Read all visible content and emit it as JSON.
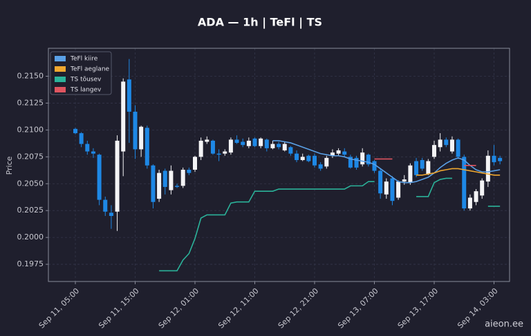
{
  "chart_data": {
    "type": "candlestick",
    "title": "ADA — 1h  |  TeFl  |  TS",
    "y_label": "Price",
    "watermark": "aieon.ee",
    "categories": [
      "Sep 11, 05:00",
      null,
      null,
      null,
      null,
      null,
      null,
      null,
      null,
      null,
      "Sep 11, 15:00",
      null,
      null,
      null,
      null,
      null,
      null,
      null,
      null,
      null,
      "Sep 12, 01:00",
      null,
      null,
      null,
      null,
      null,
      null,
      null,
      null,
      null,
      "Sep 12, 11:00",
      null,
      null,
      null,
      null,
      null,
      null,
      null,
      null,
      null,
      "Sep 12, 21:00",
      null,
      null,
      null,
      null,
      null,
      null,
      null,
      null,
      null,
      "Sep 13, 07:00",
      null,
      null,
      null,
      null,
      null,
      null,
      null,
      null,
      null,
      "Sep 13, 17:00",
      null,
      null,
      null,
      null,
      null,
      null,
      null,
      null,
      null,
      "Sep 14, 03:00",
      null
    ],
    "open": [
      0.2101,
      0.2097,
      0.2087,
      0.208,
      0.2077,
      0.2035,
      0.2023,
      0.2024,
      0.208,
      0.2147,
      0.2117,
      0.2082,
      0.2102,
      0.2067,
      0.2036,
      0.2062,
      0.2044,
      0.2048,
      0.2048,
      0.2063,
      0.2063,
      0.2075,
      0.2089,
      0.209,
      0.2078,
      0.2078,
      0.2079,
      0.2091,
      0.2089,
      0.2085,
      0.2092,
      0.2085,
      0.2091,
      0.2083,
      0.2087,
      0.2081,
      0.2084,
      0.2078,
      0.2072,
      0.2076,
      0.2076,
      0.2068,
      0.2066,
      0.2076,
      0.2078,
      0.208,
      0.2075,
      0.2074,
      0.2068,
      0.2077,
      0.2071,
      0.2062,
      0.204,
      0.2055,
      0.2037,
      0.2052,
      0.2051,
      0.2071,
      0.2072,
      0.2059,
      0.2075,
      0.2084,
      0.2091,
      0.208,
      0.2091,
      0.2075,
      0.2027,
      0.2033,
      0.2039,
      0.2052,
      0.2076,
      0.2074
    ],
    "high": [
      0.2102,
      0.2098,
      0.209,
      0.2083,
      0.2078,
      0.2038,
      0.203,
      0.2095,
      0.2148,
      0.2166,
      0.2123,
      0.2104,
      0.2104,
      0.2068,
      0.2063,
      0.2064,
      0.2067,
      0.205,
      0.2065,
      0.2065,
      0.2076,
      0.2093,
      0.2094,
      0.2091,
      0.2082,
      0.2082,
      0.2093,
      0.2095,
      0.2092,
      0.2093,
      0.2093,
      0.2093,
      0.2092,
      0.209,
      0.2089,
      0.2089,
      0.2085,
      0.2081,
      0.2078,
      0.2077,
      0.2078,
      0.207,
      0.2076,
      0.2082,
      0.2083,
      0.2083,
      0.2077,
      0.2076,
      0.2083,
      0.2078,
      0.2072,
      0.2064,
      0.2055,
      0.2057,
      0.2053,
      0.2058,
      0.2069,
      0.2074,
      0.2074,
      0.2073,
      0.209,
      0.2097,
      0.2093,
      0.2094,
      0.2092,
      0.2077,
      0.204,
      0.2045,
      0.2055,
      0.2081,
      0.2086,
      0.2076
    ],
    "low": [
      0.2096,
      0.2084,
      0.2077,
      0.2074,
      0.203,
      0.202,
      0.2008,
      0.2006,
      0.2057,
      0.2088,
      0.2073,
      0.2075,
      0.2064,
      0.2027,
      0.2033,
      0.204,
      0.204,
      0.2046,
      0.2046,
      0.2058,
      0.2061,
      0.2072,
      0.2087,
      0.2077,
      0.2071,
      0.2076,
      0.2077,
      0.2087,
      0.2084,
      0.2083,
      0.2084,
      0.2083,
      0.208,
      0.2082,
      0.2082,
      0.208,
      0.2076,
      0.207,
      0.2071,
      0.207,
      0.2065,
      0.2062,
      0.2064,
      0.2074,
      0.2076,
      0.2075,
      0.2064,
      0.2063,
      0.2066,
      0.2066,
      0.206,
      0.2036,
      0.2036,
      0.203,
      0.2035,
      0.2049,
      0.2049,
      0.2056,
      0.2062,
      0.2058,
      0.2073,
      0.208,
      0.2084,
      0.2078,
      0.2073,
      0.2025,
      0.2025,
      0.203,
      0.2036,
      0.2047,
      0.2067,
      0.2068
    ],
    "close": [
      0.2097,
      0.2087,
      0.208,
      0.2078,
      0.2035,
      0.2024,
      0.202,
      0.209,
      0.2145,
      0.2117,
      0.2082,
      0.2103,
      0.2067,
      0.2033,
      0.206,
      0.2047,
      0.2062,
      0.2047,
      0.2063,
      0.206,
      0.2075,
      0.209,
      0.2091,
      0.2078,
      0.2077,
      0.208,
      0.2091,
      0.2088,
      0.2086,
      0.209,
      0.2085,
      0.2092,
      0.2083,
      0.2087,
      0.2084,
      0.2087,
      0.2078,
      0.2072,
      0.2075,
      0.2071,
      0.2067,
      0.2064,
      0.2074,
      0.2079,
      0.2081,
      0.2077,
      0.2065,
      0.2065,
      0.2079,
      0.2068,
      0.2062,
      0.2041,
      0.2052,
      0.2034,
      0.2052,
      0.2054,
      0.2067,
      0.2058,
      0.2064,
      0.2071,
      0.2086,
      0.2091,
      0.2086,
      0.2091,
      0.2075,
      0.2027,
      0.2037,
      0.2043,
      0.2053,
      0.2076,
      0.207,
      0.2071
    ],
    "up_color": "#f4f4f6",
    "down_color": "#1e88e5",
    "series": [
      {
        "name": "TeFl kiire",
        "color": "#5aa0e6",
        "values": [
          null,
          null,
          null,
          null,
          null,
          null,
          null,
          null,
          null,
          null,
          null,
          null,
          null,
          null,
          null,
          null,
          null,
          null,
          null,
          null,
          null,
          null,
          null,
          null,
          null,
          null,
          null,
          null,
          null,
          null,
          null,
          null,
          null,
          0.209,
          0.209,
          0.2089,
          0.2088,
          0.2086,
          0.2084,
          0.2082,
          0.208,
          0.2078,
          0.2077,
          0.2076,
          0.2076,
          0.2075,
          0.2073,
          0.2072,
          0.2071,
          0.207,
          0.2068,
          0.2064,
          0.206,
          0.2056,
          0.2052,
          0.2051,
          0.2051,
          0.2052,
          0.2054,
          0.2056,
          0.206,
          0.2065,
          0.2069,
          0.2072,
          0.2074,
          0.2072,
          0.2067,
          0.2063,
          0.2061,
          0.2061,
          0.2062,
          0.2063
        ]
      },
      {
        "name": "TeFl aeglane",
        "color": "#f0a830",
        "values": [
          null,
          null,
          null,
          null,
          null,
          null,
          null,
          null,
          null,
          null,
          null,
          null,
          null,
          null,
          null,
          null,
          null,
          null,
          null,
          null,
          null,
          null,
          null,
          null,
          null,
          null,
          null,
          null,
          null,
          null,
          null,
          null,
          null,
          null,
          null,
          null,
          null,
          null,
          null,
          null,
          null,
          null,
          null,
          null,
          null,
          null,
          null,
          null,
          null,
          null,
          null,
          null,
          null,
          null,
          null,
          null,
          null,
          0.2058,
          0.2058,
          0.2059,
          0.206,
          0.2062,
          0.2063,
          0.2064,
          0.2064,
          0.2063,
          0.2062,
          0.2061,
          0.206,
          0.2059,
          0.2058,
          0.2058
        ]
      },
      {
        "name": "TS tõusev",
        "color": "#2bb39a",
        "values": [
          null,
          null,
          null,
          null,
          null,
          null,
          null,
          null,
          null,
          null,
          null,
          null,
          null,
          null,
          0.1969,
          0.1969,
          0.1969,
          0.1969,
          0.1979,
          0.1985,
          0.1999,
          0.2018,
          0.2021,
          0.2021,
          0.2021,
          0.2021,
          0.2032,
          0.2033,
          0.2033,
          0.2033,
          0.2043,
          0.2043,
          0.2043,
          0.2043,
          0.2045,
          0.2045,
          0.2045,
          0.2045,
          0.2045,
          0.2045,
          0.2045,
          0.2045,
          0.2045,
          0.2045,
          0.2045,
          0.2045,
          0.2048,
          0.2048,
          0.2048,
          0.2052,
          0.2052,
          null,
          null,
          null,
          null,
          null,
          null,
          0.2038,
          0.2038,
          0.2038,
          0.2051,
          0.2054,
          0.2055,
          0.2055,
          null,
          null,
          null,
          null,
          null,
          0.2029,
          0.2029,
          0.2029
        ]
      },
      {
        "name": "TS langev",
        "color": "#e05560",
        "values": [
          null,
          null,
          null,
          null,
          null,
          null,
          null,
          null,
          null,
          null,
          null,
          null,
          null,
          null,
          null,
          null,
          null,
          null,
          null,
          null,
          null,
          null,
          null,
          null,
          null,
          null,
          null,
          null,
          null,
          null,
          null,
          null,
          null,
          null,
          null,
          null,
          null,
          null,
          null,
          null,
          null,
          null,
          null,
          null,
          null,
          null,
          null,
          null,
          null,
          null,
          0.2073,
          0.2073,
          0.2073,
          0.2073,
          null,
          null,
          null,
          null,
          null,
          null,
          null,
          null,
          null,
          null,
          null,
          0.2067,
          0.2067,
          0.2067,
          null,
          null,
          null,
          null
        ]
      }
    ],
    "ylim": [
      0.1959,
      0.2176
    ],
    "yticks": [
      0.1975,
      {
        "value": 0.2,
        "label": "0.2000"
      },
      0.2025,
      {
        "value": 0.205,
        "label": "0.2050"
      },
      0.2075,
      {
        "value": 0.21,
        "label": "0.2100"
      },
      0.2125,
      {
        "value": 0.215,
        "label": "0.2150"
      }
    ],
    "grid": true,
    "legend": "upper left"
  }
}
